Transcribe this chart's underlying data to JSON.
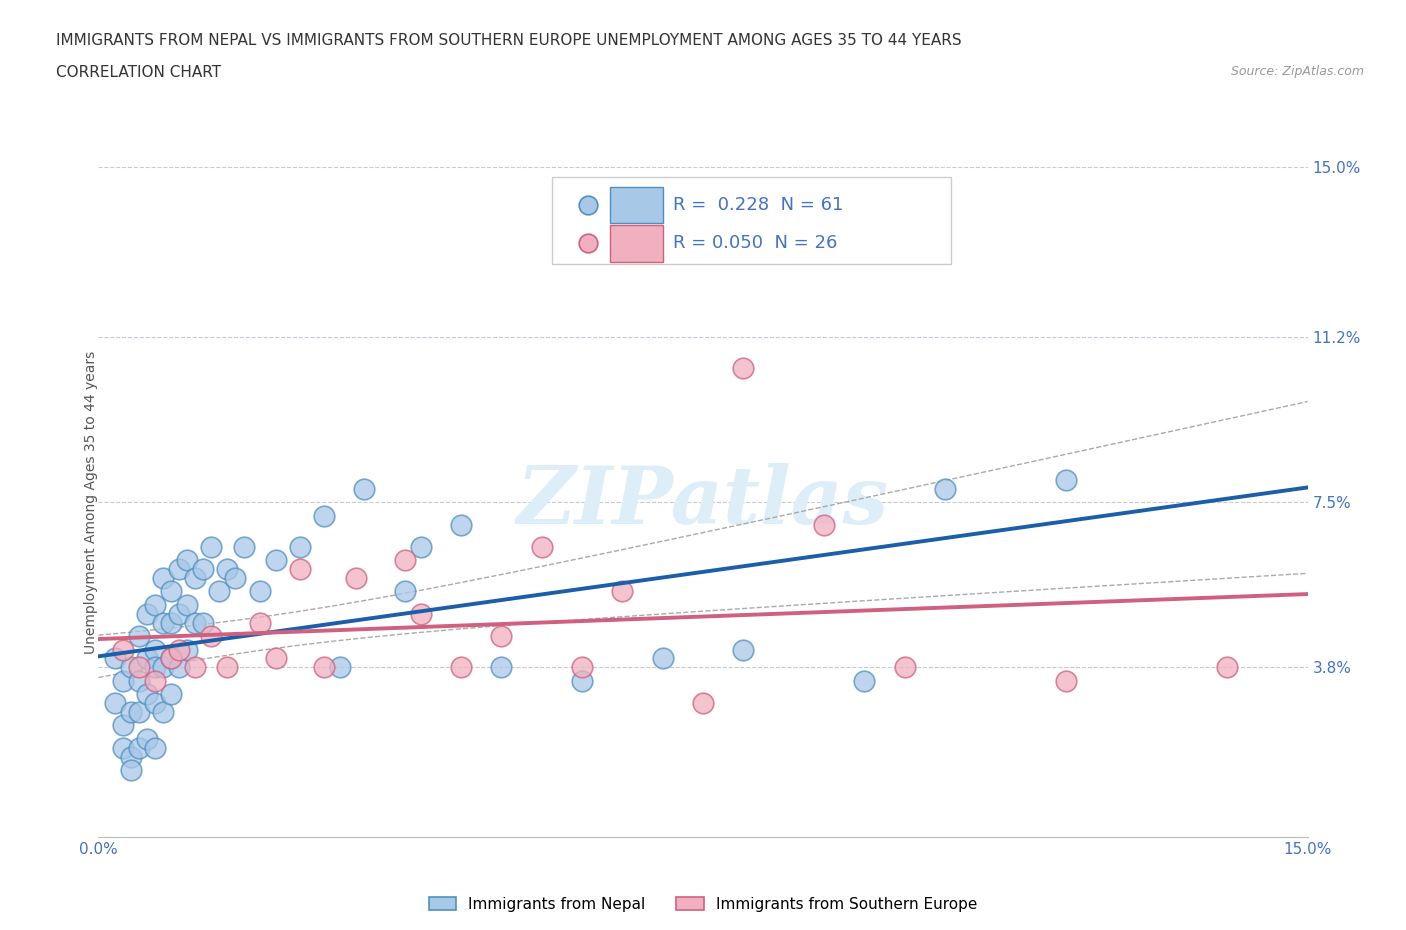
{
  "title_line1": "IMMIGRANTS FROM NEPAL VS IMMIGRANTS FROM SOUTHERN EUROPE UNEMPLOYMENT AMONG AGES 35 TO 44 YEARS",
  "title_line2": "CORRELATION CHART",
  "source_text": "Source: ZipAtlas.com",
  "ylabel": "Unemployment Among Ages 35 to 44 years",
  "xlim": [
    0.0,
    0.15
  ],
  "ylim": [
    0.0,
    0.15
  ],
  "ytick_labels": [
    "3.8%",
    "7.5%",
    "11.2%",
    "15.0%"
  ],
  "ytick_vals": [
    0.038,
    0.075,
    0.112,
    0.15
  ],
  "grid_color": "#c8c8d8",
  "background_color": "#ffffff",
  "nepal_color": "#a8c8e8",
  "nepal_edge_color": "#5090c0",
  "southern_europe_color": "#f0b0c0",
  "southern_europe_edge_color": "#d06080",
  "nepal_R": 0.228,
  "nepal_N": 61,
  "southern_europe_R": 0.05,
  "southern_europe_N": 26,
  "nepal_scatter_x": [
    0.002,
    0.002,
    0.003,
    0.003,
    0.003,
    0.004,
    0.004,
    0.004,
    0.004,
    0.005,
    0.005,
    0.005,
    0.005,
    0.006,
    0.006,
    0.006,
    0.006,
    0.007,
    0.007,
    0.007,
    0.007,
    0.007,
    0.008,
    0.008,
    0.008,
    0.008,
    0.009,
    0.009,
    0.009,
    0.009,
    0.01,
    0.01,
    0.01,
    0.011,
    0.011,
    0.011,
    0.012,
    0.012,
    0.013,
    0.013,
    0.014,
    0.015,
    0.016,
    0.017,
    0.018,
    0.02,
    0.022,
    0.025,
    0.028,
    0.03,
    0.033,
    0.038,
    0.04,
    0.045,
    0.05,
    0.06,
    0.07,
    0.08,
    0.095,
    0.105,
    0.12
  ],
  "nepal_scatter_y": [
    0.04,
    0.03,
    0.035,
    0.025,
    0.02,
    0.038,
    0.028,
    0.018,
    0.015,
    0.045,
    0.035,
    0.028,
    0.02,
    0.05,
    0.04,
    0.032,
    0.022,
    0.052,
    0.042,
    0.038,
    0.03,
    0.02,
    0.058,
    0.048,
    0.038,
    0.028,
    0.055,
    0.048,
    0.04,
    0.032,
    0.06,
    0.05,
    0.038,
    0.062,
    0.052,
    0.042,
    0.058,
    0.048,
    0.06,
    0.048,
    0.065,
    0.055,
    0.06,
    0.058,
    0.065,
    0.055,
    0.062,
    0.065,
    0.072,
    0.038,
    0.078,
    0.055,
    0.065,
    0.07,
    0.038,
    0.035,
    0.04,
    0.042,
    0.035,
    0.078,
    0.08
  ],
  "southern_europe_scatter_x": [
    0.003,
    0.005,
    0.007,
    0.009,
    0.01,
    0.012,
    0.014,
    0.016,
    0.02,
    0.022,
    0.025,
    0.028,
    0.032,
    0.038,
    0.04,
    0.045,
    0.05,
    0.055,
    0.06,
    0.065,
    0.075,
    0.08,
    0.09,
    0.1,
    0.12,
    0.14
  ],
  "southern_europe_scatter_y": [
    0.042,
    0.038,
    0.035,
    0.04,
    0.042,
    0.038,
    0.045,
    0.038,
    0.048,
    0.04,
    0.06,
    0.038,
    0.058,
    0.062,
    0.05,
    0.038,
    0.045,
    0.065,
    0.038,
    0.055,
    0.03,
    0.105,
    0.07,
    0.038,
    0.035,
    0.038
  ],
  "nepal_trendline_color": "#1a5fa8",
  "nepal_ci_color": "#aaaaaa",
  "southern_europe_trendline_color": "#d06080",
  "legend_nepal_label": "Immigrants from Nepal",
  "legend_southern_label": "Immigrants from Southern Europe",
  "watermark_text": "ZIPatlas",
  "watermark_color": "#ddeef8",
  "title_fontsize": 11,
  "label_fontsize": 10,
  "tick_fontsize": 11,
  "legend_fontsize": 13
}
